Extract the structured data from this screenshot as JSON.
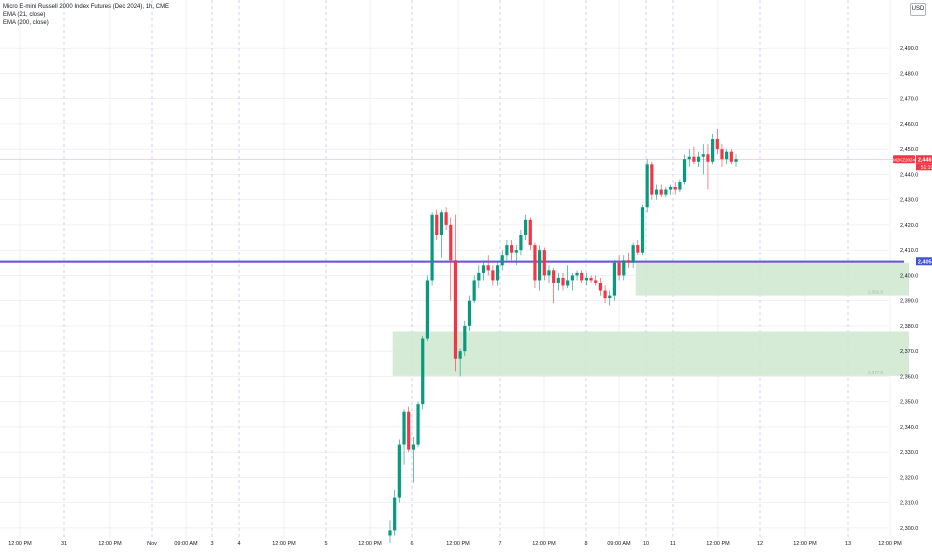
{
  "header": {
    "title": "Micro E-mini Russell 2000 Index Futures (Dec 2024), 1h, CME",
    "indicators": [
      "EMA (21, close)",
      "EMA (200, close)"
    ],
    "currency": "USD"
  },
  "colors": {
    "up": "#089981",
    "down": "#f23645",
    "blue_line": "#3f51d8",
    "purple_line": "#7a35c7",
    "zone_fill": "#cfe8cf",
    "grid": "#e6e9ef",
    "separator": "#a9b6e8"
  },
  "chart_data": {
    "type": "candlestick",
    "y_axis": {
      "ticks": [
        "2,300.0",
        "2,310.0",
        "2,320.0",
        "2,330.0",
        "2,340.0",
        "2,350.0",
        "2,360.0",
        "2,370.0",
        "2,380.0",
        "2,390.0",
        "2,400.0",
        "2,410.0",
        "2,420.0",
        "2,430.0",
        "2,440.0",
        "2,450.0",
        "2,460.0",
        "2,470.0",
        "2,480.0",
        "2,490.0"
      ],
      "range": [
        2296,
        2500
      ]
    },
    "x_axis": {
      "ticks": [
        "12:00 PM",
        "31",
        "12:00 PM",
        "Nov",
        "09:00 AM",
        "3",
        "4",
        "12:00 PM",
        "5",
        "12:00 PM",
        "6",
        "12:00 PM",
        "7",
        "12:00 PM",
        "8",
        "09:00 AM",
        "10",
        "11",
        "12:00 PM",
        "12",
        "12:00 PM",
        "13",
        "12:00 PM"
      ]
    },
    "price_labels": {
      "last_price": "2,446.0",
      "countdown": "51:19",
      "symbol": "M2KZ2024",
      "line_level": "2,405.6"
    },
    "horizontal_lines": [
      {
        "price": 2405.6,
        "color": "#3f51d8"
      },
      {
        "price": 2446.0,
        "color": "#f23645"
      }
    ],
    "zones": [
      {
        "from_index": 53,
        "y_top": 2405.0,
        "y_bottom": 2392.0,
        "label": "2,392.0"
      },
      {
        "from_index": 1,
        "y_top": 2377.8,
        "y_bottom": 2360.2,
        "label": "2,377.8"
      }
    ],
    "candles": [
      [
        2297.0,
        2303.0,
        2294.0,
        2299.0
      ],
      [
        2299.0,
        2315.0,
        2297.0,
        2312.0
      ],
      [
        2312.0,
        2335.0,
        2310.0,
        2333.0
      ],
      [
        2333.0,
        2347.0,
        2325.0,
        2346.0
      ],
      [
        2346.0,
        2348.0,
        2330.0,
        2331.0
      ],
      [
        2331.0,
        2336.0,
        2318.0,
        2333.0
      ],
      [
        2333.0,
        2350.0,
        2332.0,
        2349.0
      ],
      [
        2349.0,
        2376.0,
        2347.0,
        2375.0
      ],
      [
        2375.0,
        2400.0,
        2374.0,
        2398.0
      ],
      [
        2398.0,
        2425.0,
        2396.0,
        2424.0
      ],
      [
        2424.0,
        2426.0,
        2414.0,
        2416.0
      ],
      [
        2416.0,
        2426.0,
        2407.0,
        2425.0
      ],
      [
        2425.0,
        2427.0,
        2418.0,
        2420.0
      ],
      [
        2420.0,
        2423.0,
        2390.0,
        2406.0
      ],
      [
        2406.0,
        2424.0,
        2362.0,
        2367.0
      ],
      [
        2367.0,
        2371.0,
        2360.0,
        2370.0
      ],
      [
        2370.0,
        2382.0,
        2368.0,
        2380.0
      ],
      [
        2380.0,
        2392.0,
        2378.0,
        2390.0
      ],
      [
        2390.0,
        2400.0,
        2389.0,
        2398.0
      ],
      [
        2398.0,
        2404.0,
        2395.0,
        2401.0
      ],
      [
        2401.0,
        2406.0,
        2398.0,
        2404.0
      ],
      [
        2404.0,
        2408.0,
        2400.0,
        2402.0
      ],
      [
        2402.0,
        2404.0,
        2396.0,
        2398.0
      ],
      [
        2398.0,
        2405.0,
        2396.0,
        2404.0
      ],
      [
        2404.0,
        2410.0,
        2402.0,
        2408.0
      ],
      [
        2408.0,
        2414.0,
        2406.0,
        2412.0
      ],
      [
        2412.0,
        2414.0,
        2406.0,
        2409.0
      ],
      [
        2409.0,
        2412.0,
        2404.0,
        2410.0
      ],
      [
        2410.0,
        2418.0,
        2408.0,
        2416.0
      ],
      [
        2416.0,
        2424.0,
        2414.0,
        2422.0
      ],
      [
        2422.0,
        2423.0,
        2410.0,
        2412.0
      ],
      [
        2412.0,
        2413.0,
        2395.0,
        2398.0
      ],
      [
        2398.0,
        2412.0,
        2394.0,
        2410.0
      ],
      [
        2410.0,
        2411.0,
        2398.0,
        2400.0
      ],
      [
        2400.0,
        2404.0,
        2397.0,
        2402.0
      ],
      [
        2402.0,
        2403.0,
        2389.0,
        2397.0
      ],
      [
        2397.0,
        2401.0,
        2394.0,
        2399.0
      ],
      [
        2399.0,
        2401.0,
        2394.0,
        2396.0
      ],
      [
        2396.0,
        2404.0,
        2395.0,
        2398.0
      ],
      [
        2398.0,
        2401.0,
        2394.0,
        2400.0
      ],
      [
        2400.0,
        2402.0,
        2398.0,
        2401.0
      ],
      [
        2401.0,
        2402.0,
        2397.0,
        2398.0
      ],
      [
        2398.0,
        2401.0,
        2396.0,
        2399.0
      ],
      [
        2399.0,
        2400.0,
        2397.0,
        2398.0
      ],
      [
        2398.0,
        2400.0,
        2396.0,
        2397.0
      ],
      [
        2397.0,
        2399.0,
        2392.0,
        2394.0
      ],
      [
        2394.0,
        2396.0,
        2389.0,
        2391.0
      ],
      [
        2391.0,
        2394.0,
        2388.0,
        2392.0
      ],
      [
        2392.0,
        2406.0,
        2390.0,
        2405.0
      ],
      [
        2405.0,
        2408.0,
        2398.0,
        2400.0
      ],
      [
        2400.0,
        2408.0,
        2398.0,
        2406.0
      ],
      [
        2406.0,
        2409.0,
        2403.0,
        2405.0
      ],
      [
        2405.0,
        2413.0,
        2403.0,
        2412.0
      ],
      [
        2412.0,
        2414.0,
        2408.0,
        2409.0
      ],
      [
        2409.0,
        2428.0,
        2408.0,
        2427.0
      ],
      [
        2427.0,
        2446.0,
        2425.0,
        2444.0
      ],
      [
        2444.0,
        2445.0,
        2430.0,
        2432.0
      ],
      [
        2432.0,
        2436.0,
        2430.0,
        2434.0
      ],
      [
        2434.0,
        2436.0,
        2431.0,
        2432.0
      ],
      [
        2432.0,
        2435.0,
        2431.0,
        2434.0
      ],
      [
        2434.0,
        2436.0,
        2432.0,
        2435.0
      ],
      [
        2435.0,
        2437.0,
        2432.0,
        2434.0
      ],
      [
        2434.0,
        2438.0,
        2433.0,
        2437.0
      ],
      [
        2437.0,
        2448.0,
        2436.0,
        2446.0
      ],
      [
        2446.0,
        2450.0,
        2443.0,
        2447.0
      ],
      [
        2447.0,
        2451.0,
        2444.0,
        2445.0
      ],
      [
        2445.0,
        2449.0,
        2443.0,
        2447.0
      ],
      [
        2447.0,
        2452.0,
        2440.0,
        2448.0
      ],
      [
        2448.0,
        2452.0,
        2434.0,
        2445.0
      ],
      [
        2445.0,
        2456.0,
        2444.0,
        2454.0
      ],
      [
        2454.0,
        2458.0,
        2448.0,
        2450.0
      ],
      [
        2450.0,
        2452.0,
        2443.0,
        2446.0
      ],
      [
        2446.0,
        2450.0,
        2444.0,
        2449.0
      ],
      [
        2449.0,
        2450.0,
        2444.0,
        2445.0
      ],
      [
        2445.0,
        2448.0,
        2443.0,
        2446.0
      ]
    ]
  }
}
